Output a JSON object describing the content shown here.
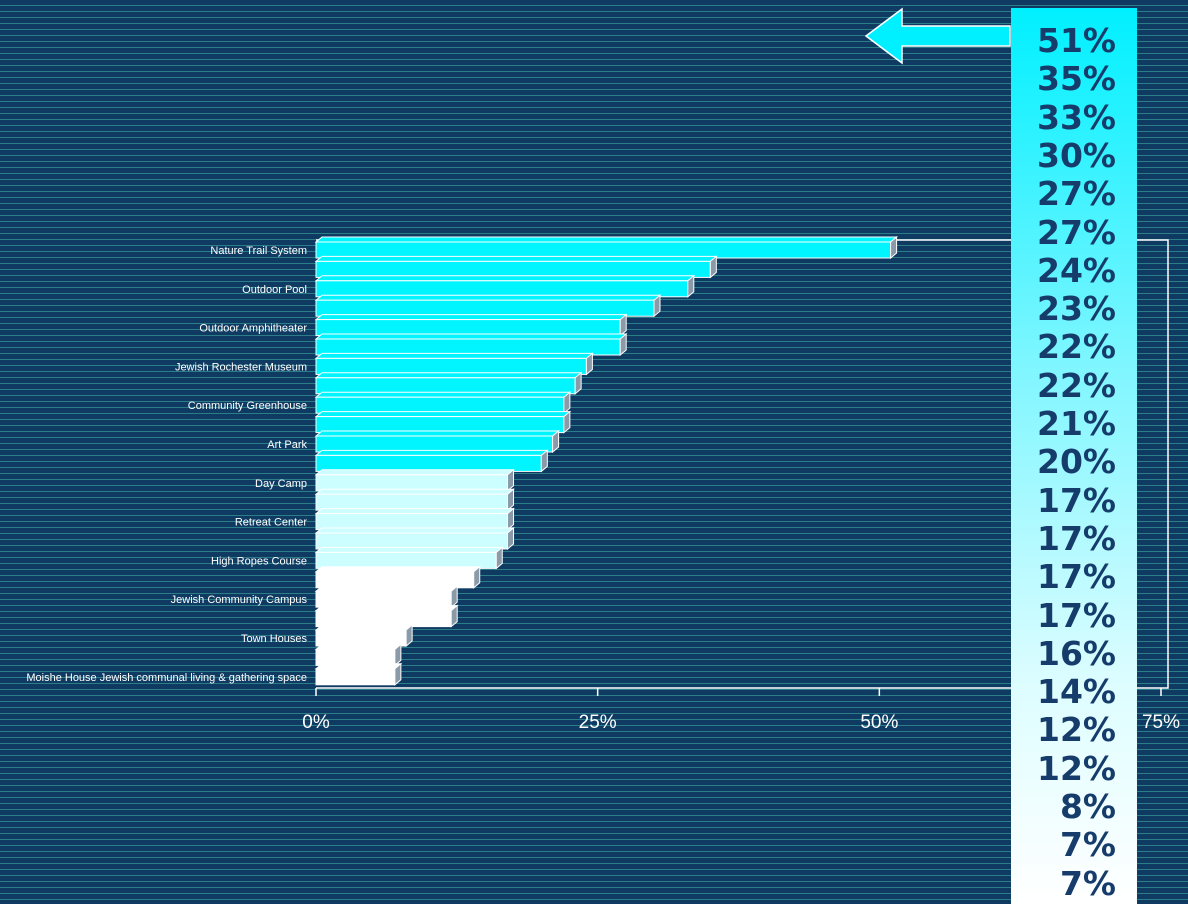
{
  "chart_data": {
    "type": "bar",
    "orientation": "horizontal",
    "style": "3d",
    "categories": [
      "Nature Trail System",
      "",
      "Outdoor Pool",
      "",
      "Outdoor Amphitheater",
      "",
      "Jewish Rochester Museum",
      "",
      "Community Greenhouse",
      "",
      "Art Park",
      "",
      "Day Camp",
      "",
      "Retreat Center",
      "",
      "High Ropes Course",
      "",
      "Jewish Community Campus",
      "",
      "Town Houses",
      "",
      "Moishe House Jewish communal living & gathering space"
    ],
    "values": [
      51,
      35,
      33,
      30,
      27,
      27,
      24,
      23,
      22,
      22,
      21,
      20,
      17,
      17,
      17,
      17,
      16,
      14,
      12,
      12,
      8,
      7,
      7
    ],
    "value_labels": [
      "51%",
      "35%",
      "33%",
      "30%",
      "27%",
      "27%",
      "24%",
      "23%",
      "22%",
      "22%",
      "21%",
      "20%",
      "17%",
      "17%",
      "17%",
      "17%",
      "16%",
      "14%",
      "12%",
      "12%",
      "8%",
      "7%",
      "7%"
    ],
    "xlim": [
      0,
      75
    ],
    "xticks": [
      0,
      25,
      50,
      75
    ],
    "xtick_labels": [
      "0%",
      "25%",
      "50%",
      "75%"
    ],
    "title": "",
    "xlabel": "",
    "ylabel": "",
    "bar_color_tiers": [
      {
        "count": 12,
        "color": "#00f5ff"
      },
      {
        "count": 5,
        "color": "#ccfdff"
      },
      {
        "count": 6,
        "color": "#ffffff"
      }
    ],
    "grid": false,
    "legend": "none"
  },
  "colors": {
    "background": "#0f3a62",
    "stripe": "#2b7d88",
    "label_text": "#ffffff",
    "value_text": "#153c6a",
    "arrow": "#00f0ff"
  },
  "icons": {
    "arrow": "left-arrow-icon"
  }
}
